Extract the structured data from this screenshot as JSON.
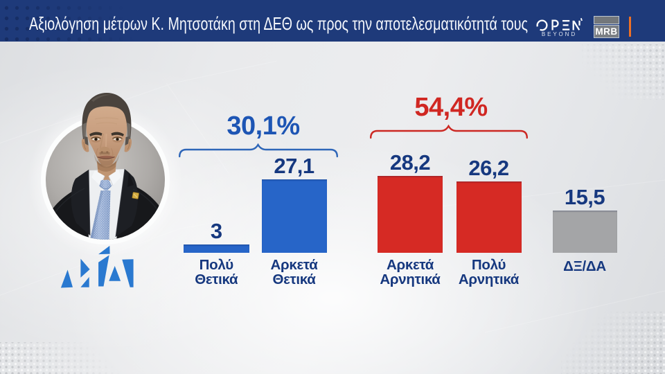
{
  "header": {
    "title": "Αξιολόγηση μέτρων Κ. Μητσοτάκη στη ΔΕΘ ως προς την αποτελεσματικότητά τους",
    "channel_logo": {
      "name": "OPEN",
      "tagline": "BEYOND"
    },
    "agency_logo": {
      "name": "MRB"
    }
  },
  "portrait": {
    "person": "Κ. Μητσοτάκης",
    "party_logo": "ΝΔ"
  },
  "chart_data": {
    "type": "bar",
    "title": "Αξιολόγηση μέτρων Κ. Μητσοτάκη στη ΔΕΘ ως προς την αποτελεσματικότητά τους",
    "categories": [
      "Πολύ Θετικά",
      "Αρκετά Θετικά",
      "Αρκετά Αρνητικά",
      "Πολύ Αρνητικά",
      "ΔΞ/ΔΑ"
    ],
    "category_lines": [
      [
        "Πολύ",
        "Θετικά"
      ],
      [
        "Αρκετά",
        "Θετικά"
      ],
      [
        "Αρκετά",
        "Αρνητικά"
      ],
      [
        "Πολύ",
        "Αρνητικά"
      ],
      [
        "ΔΞ/ΔΑ"
      ]
    ],
    "values": [
      3,
      27.1,
      28.2,
      26.2,
      15.5
    ],
    "value_labels": [
      "3",
      "27,1",
      "28,2",
      "26,2",
      "15,5"
    ],
    "bar_colors": [
      "#2765c8",
      "#2765c8",
      "#d62a24",
      "#d62a24",
      "#a4a5a7"
    ],
    "groups": [
      {
        "label": "30,1%",
        "sum": 30.1,
        "color": "#1d55b4",
        "bars": [
          0,
          1
        ]
      },
      {
        "label": "54,4%",
        "sum": 54.4,
        "color": "#d02722",
        "bars": [
          2,
          3
        ]
      }
    ],
    "legend": null,
    "grid": false,
    "ylim": [
      0,
      30
    ]
  },
  "colors": {
    "header_bg": "#1e3a7a",
    "accent_orange": "#e8701f",
    "bar_blue": "#2765c8",
    "bar_red": "#d62a24",
    "bar_gray": "#a4a5a7",
    "label_navy": "#16387f",
    "background": "#e7e8ea"
  }
}
